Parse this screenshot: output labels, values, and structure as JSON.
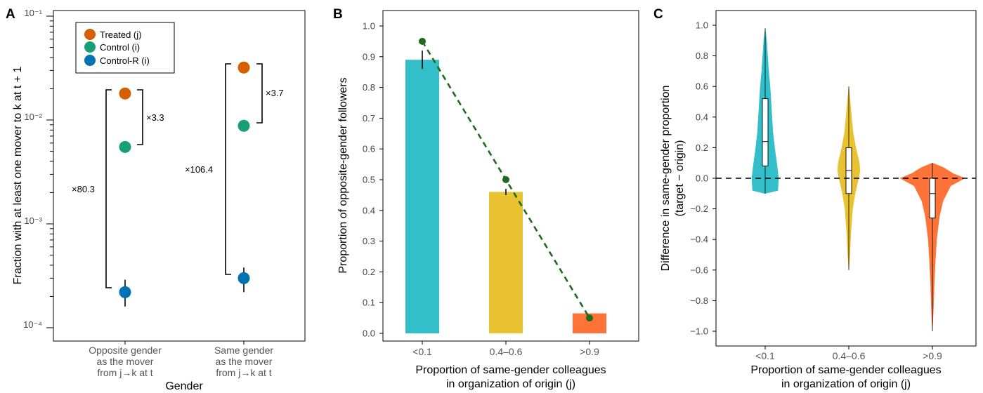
{
  "chart_data": [
    {
      "panel": "A",
      "type": "scatter",
      "yscale": "log",
      "ylim": [
        8e-05,
        0.1
      ],
      "ylabel": "Fraction with at least one mover to k at t + 1",
      "xlabel": "Gender",
      "yticks": [
        "10⁻⁴",
        "10⁻³",
        "10⁻²",
        "10⁻¹"
      ],
      "categories": [
        [
          "Opposite gender",
          "as the mover",
          "from j→k at t"
        ],
        [
          "Same gender",
          "as the mover",
          "from j→k at t"
        ]
      ],
      "legend": [
        "Treated (j)",
        "Control (i)",
        "Control-R (i)"
      ],
      "legend_position": "top-left",
      "colors": [
        "#D55E00",
        "#1A9E77",
        "#0072B2"
      ],
      "series": [
        {
          "name": "Treated (j)",
          "values": [
            0.018,
            0.032
          ],
          "err_low": [
            null,
            null
          ],
          "err_high": [
            null,
            null
          ]
        },
        {
          "name": "Control (i)",
          "values": [
            0.0055,
            0.0088
          ],
          "err_low": [
            null,
            null
          ],
          "err_high": [
            null,
            null
          ]
        },
        {
          "name": "Control-R (i)",
          "values": [
            0.00022,
            0.0003
          ],
          "err_low": [
            0.00016,
            0.00022
          ],
          "err_high": [
            0.00029,
            0.00038
          ]
        }
      ],
      "ratio_labels": [
        "×3.3",
        "×80.3",
        "×3.7",
        "×106.4"
      ]
    },
    {
      "panel": "B",
      "type": "bar",
      "categories": [
        "<0.1",
        "0.4–0.6",
        ">0.9"
      ],
      "values": [
        0.89,
        0.46,
        0.065
      ],
      "err_low": [
        0.86,
        0.45,
        null
      ],
      "err_high": [
        0.92,
        0.47,
        null
      ],
      "line_values": [
        0.95,
        0.5,
        0.05
      ],
      "colors": [
        "#33BFC9",
        "#E8C230",
        "#FF7338"
      ],
      "line_color": "#1E6B1E",
      "ylim": [
        0,
        1.05
      ],
      "yticks": [
        "0.0",
        "0.1",
        "0.2",
        "0.3",
        "0.4",
        "0.5",
        "0.6",
        "0.7",
        "0.8",
        "0.9",
        "1.0"
      ],
      "ylabel": "Proportion of opposite-gender followers",
      "xlabel": [
        "Proportion of same-gender colleagues",
        "in organization of origin (j)"
      ]
    },
    {
      "panel": "C",
      "type": "violin",
      "categories": [
        "<0.1",
        "0.4–0.6",
        ">0.9"
      ],
      "colors": [
        "#33BFC9",
        "#E8C230",
        "#FF7338"
      ],
      "ranges": [
        [
          -0.1,
          0.98
        ],
        [
          -0.6,
          0.6
        ],
        [
          -1.0,
          0.1
        ]
      ],
      "box": [
        {
          "q1": 0.08,
          "median": 0.24,
          "q3": 0.52
        },
        {
          "q1": -0.1,
          "median": 0.05,
          "q3": 0.2
        },
        {
          "q1": -0.26,
          "median": -0.1,
          "q3": 0.0
        }
      ],
      "reference_line": 0.0,
      "ylim": [
        -1.1,
        1.05
      ],
      "yticks": [
        "−1.0",
        "−0.8",
        "−0.6",
        "−0.4",
        "−0.2",
        "0.0",
        "0.2",
        "0.4",
        "0.6",
        "0.8",
        "1.0"
      ],
      "ylabel": [
        "Difference in same-gender proportion",
        "(target − origin)"
      ],
      "xlabel": [
        "Proportion of same-gender colleagues",
        "in organization of origin (j)"
      ]
    }
  ]
}
